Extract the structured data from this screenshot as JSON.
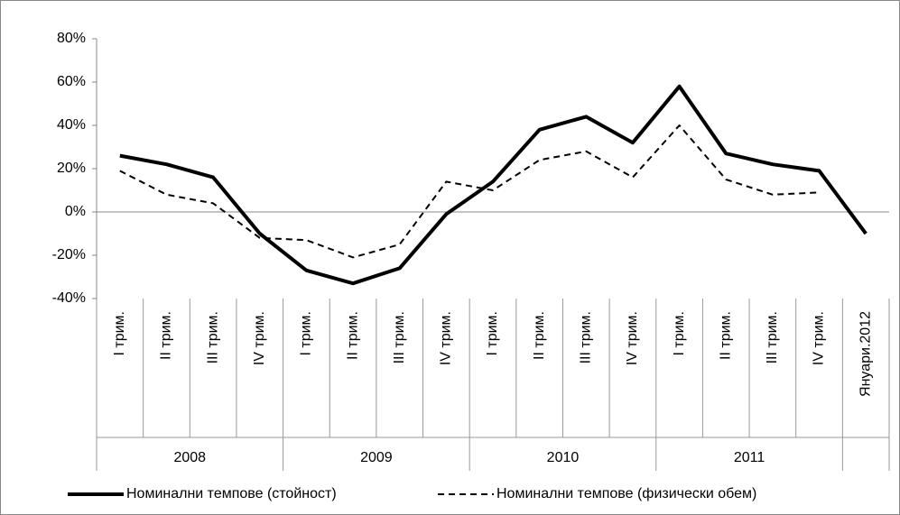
{
  "chart_data": {
    "type": "line",
    "groups": [
      {
        "name": "2008",
        "categories": [
          "I трим.",
          "II трим.",
          "III трим.",
          "IV трим."
        ]
      },
      {
        "name": "2009",
        "categories": [
          "I трим.",
          "II трим.",
          "III трим.",
          "IV трим."
        ]
      },
      {
        "name": "2010",
        "categories": [
          "I трим.",
          "II трим.",
          "III трим.",
          "IV трим."
        ]
      },
      {
        "name": "2011",
        "categories": [
          "I трим.",
          "II трим.",
          "III трим.",
          "IV трим."
        ]
      },
      {
        "categories": [
          "Януари.2012"
        ]
      }
    ],
    "series": [
      {
        "name": "Номинални темпове (стойност)",
        "color": "#000000",
        "dash": "solid",
        "values": [
          26,
          22,
          16,
          -10,
          -27,
          -33,
          -26,
          -1,
          14,
          38,
          44,
          32,
          58,
          27,
          22,
          19,
          -10
        ]
      },
      {
        "name": "Номинални темпове (физически обем)",
        "color": "#000000",
        "dash": "dashed",
        "values": [
          19,
          8,
          4,
          -12,
          -13,
          -21,
          -15,
          14,
          10,
          24,
          28,
          16,
          40,
          15,
          8,
          9,
          null
        ]
      }
    ],
    "ylim": [
      -40,
      80
    ],
    "yticks": [
      {
        "value": -40,
        "label": "-40%"
      },
      {
        "value": -20,
        "label": "-20%"
      },
      {
        "value": 0,
        "label": "0%"
      },
      {
        "value": 20,
        "label": "20%"
      },
      {
        "value": 40,
        "label": "40%"
      },
      {
        "value": 60,
        "label": "60%"
      },
      {
        "value": 80,
        "label": "80%"
      }
    ],
    "legend": "bottom"
  }
}
